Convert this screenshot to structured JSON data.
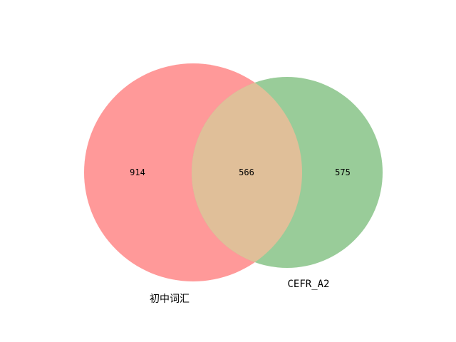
{
  "chart_data": {
    "type": "venn",
    "sets": [
      {
        "label": "初中词汇",
        "only_count": "914",
        "color": "#ff9999"
      },
      {
        "label": "CEFR_A2",
        "only_count": "575",
        "color": "#99cc99"
      }
    ],
    "intersection": {
      "count": "566",
      "color": "#e0bf99"
    }
  }
}
